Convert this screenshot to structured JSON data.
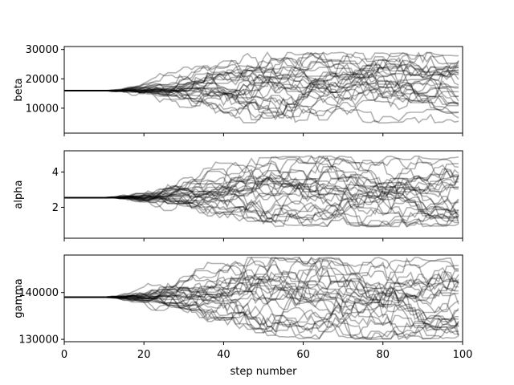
{
  "chart_data": {
    "type": "line",
    "description_of_series": "30 MCMC walker traces per panel, dark translucent lines",
    "xlabel": "step number",
    "xlim": [
      0,
      100
    ],
    "xticks": [
      0,
      20,
      40,
      60,
      80,
      100
    ],
    "line_color": "#000000",
    "panels": [
      {
        "ylabel": "beta",
        "ylim": [
          1500,
          31000
        ],
        "yticks": [
          10000,
          20000,
          30000
        ],
        "start_value": 16000,
        "spread_range": [
          5000,
          29000
        ]
      },
      {
        "ylabel": "alpha",
        "ylim": [
          0.25,
          5.2
        ],
        "yticks": [
          2,
          4
        ],
        "start_value": 2.55,
        "spread_range": [
          0.9,
          4.9
        ]
      },
      {
        "ylabel": "gamma",
        "ylim": [
          129500,
          148000
        ],
        "yticks": [
          130000,
          140000
        ],
        "start_value": 139000,
        "spread_range": [
          130000,
          147500
        ]
      }
    ]
  }
}
